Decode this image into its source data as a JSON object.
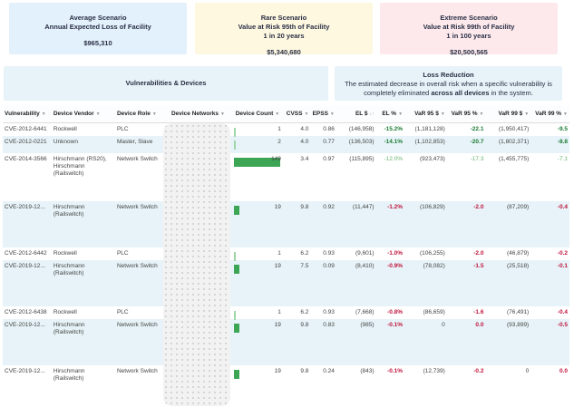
{
  "cards": [
    {
      "lines": [
        "Average Scenario",
        "Annual Expected Loss of Facility"
      ],
      "value": "$965,310",
      "color": "#e3f1fc"
    },
    {
      "lines": [
        "Rare Scenario",
        "Value at Risk 95th of Facility",
        "1 in 20 years"
      ],
      "value": "$5,340,680",
      "color": "#fef8e1"
    },
    {
      "lines": [
        "Extreme Scenario",
        "Value at Risk 99th of Facility",
        "1 in 100 years"
      ],
      "value": "$20,500,565",
      "color": "#fde9ec"
    }
  ],
  "section_left": {
    "title": "Vulnerabilities & Devices"
  },
  "section_right": {
    "title": "Loss Reduction",
    "desc_pre": "The estimated decrease in overall risk when a specific vulnerability is completely eliminated ",
    "desc_bold": "across all devices",
    "desc_post": " in the system."
  },
  "columns": [
    "Vulnerability",
    "Device Vendor",
    "Device Role",
    "Device Networks",
    "Device Count",
    "CVSS",
    "EPSS",
    "EL $",
    "EL %",
    "VaR 95 $",
    "VaR 95 %",
    "VaR 99 $",
    "VaR 99 %"
  ],
  "sort_column": "EL $",
  "rows": [
    {
      "vuln": "CVE-2012-6441",
      "vendor": "Rockwell",
      "role": "PLC",
      "count": 1,
      "cvss": "4.0",
      "epss": "0.86",
      "el": "(146,958)",
      "elp": "-15.2%",
      "v95": "(1,181,128)",
      "v95p": "-22.1",
      "v99": "(1,950,417)",
      "v99p": "-9.5",
      "c": "dg"
    },
    {
      "vuln": "CVE-2012-0221",
      "vendor": "Unknown",
      "role": "Master, Slave",
      "count": 2,
      "cvss": "4.0",
      "epss": "0.77",
      "el": "(136,503)",
      "elp": "-14.1%",
      "v95": "(1,102,853)",
      "v95p": "-20.7",
      "v99": "(1,802,371)",
      "v99p": "-8.8",
      "c": "dg"
    },
    {
      "vuln": "CVE-2014-3566",
      "vendor": "Hirschmann (RS20), Hirschmann (Railswitch)",
      "role": "Network Switch",
      "count": 149,
      "cvss": "3.4",
      "epss": "0.97",
      "el": "(115,895)",
      "elp": "-12.0%",
      "v95": "(923,473)",
      "v95p": "-17.3",
      "v99": "(1,455,775)",
      "v99p": "-7.1",
      "c": "lg"
    },
    {
      "vuln": "CVE-2019-12...",
      "vendor": "Hirschmann (Railswitch)",
      "role": "Network Switch",
      "count": 19,
      "cvss": "9.8",
      "epss": "0.92",
      "el": "(11,447)",
      "elp": "-1.2%",
      "v95": "(106,829)",
      "v95p": "-2.0",
      "v99": "(87,209)",
      "v99p": "-0.4",
      "c": "rd"
    },
    {
      "vuln": "CVE-2012-6442",
      "vendor": "Rockwell",
      "role": "PLC",
      "count": 1,
      "cvss": "6.2",
      "epss": "0.93",
      "el": "(9,601)",
      "elp": "-1.0%",
      "v95": "(106,255)",
      "v95p": "-2.0",
      "v99": "(46,879)",
      "v99p": "-0.2",
      "c": "rd"
    },
    {
      "vuln": "CVE-2019-12...",
      "vendor": "Hirschmann (Railswitch)",
      "role": "Network Switch",
      "count": 19,
      "cvss": "7.5",
      "epss": "0.09",
      "el": "(8,410)",
      "elp": "-0.9%",
      "v95": "(78,082)",
      "v95p": "-1.5",
      "v99": "(25,518)",
      "v99p": "-0.1",
      "c": "rd"
    },
    {
      "vuln": "CVE-2012-6438",
      "vendor": "Rockwell",
      "role": "PLC",
      "count": 1,
      "cvss": "6.2",
      "epss": "0.93",
      "el": "(7,668)",
      "elp": "-0.8%",
      "v95": "(86,659)",
      "v95p": "-1.6",
      "v99": "(76,491)",
      "v99p": "-0.4",
      "c": "rd"
    },
    {
      "vuln": "CVE-2019-12...",
      "vendor": "Hirschmann (Railswitch)",
      "role": "Network Switch",
      "count": 19,
      "cvss": "9.8",
      "epss": "0.83",
      "el": "(985)",
      "elp": "-0.1%",
      "v95": "0",
      "v95p": "0.0",
      "v99": "(93,899)",
      "v99p": "-0.5",
      "c": "rd"
    },
    {
      "vuln": "CVE-2019-12...",
      "vendor": "Hirschmann (Railswitch)",
      "role": "Network Switch",
      "count": 19,
      "cvss": "9.8",
      "epss": "0.24",
      "el": "(843)",
      "elp": "-0.1%",
      "v95": "(12,739)",
      "v95p": "-0.2",
      "v99": "0",
      "v99p": "0.0",
      "c": "rd"
    }
  ],
  "max_count": 149
}
